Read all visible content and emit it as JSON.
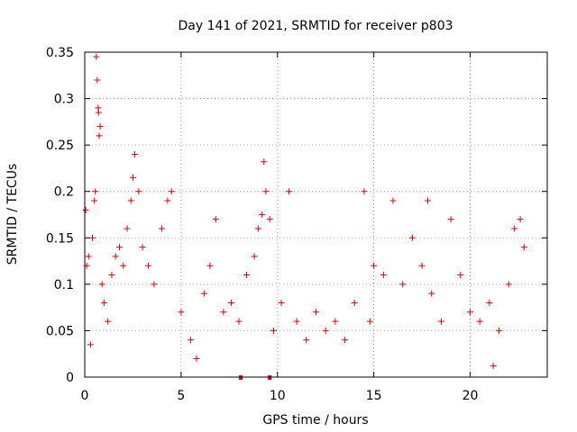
{
  "chart_data": {
    "type": "scatter",
    "title": "Day 141 of 2021, SRMTID for receiver p803",
    "xlabel": "GPS time / hours",
    "ylabel": "SRMTID / TECUs",
    "xlim": [
      0,
      24
    ],
    "ylim": [
      0,
      0.35
    ],
    "grid": true,
    "x_ticks": [
      0,
      5,
      10,
      15,
      20
    ],
    "x_tick_labels": [
      "0",
      "5",
      "10",
      "15",
      "20"
    ],
    "y_ticks": [
      0,
      0.05,
      0.1,
      0.15,
      0.2,
      0.25,
      0.3,
      0.35
    ],
    "y_tick_labels": [
      "0",
      "0.05",
      "0.1",
      "0.15",
      "0.2",
      "0.25",
      "0.3",
      "0.35"
    ],
    "marker": "+",
    "color": "#e00000",
    "gap_markers_x": [
      8.1,
      9.6
    ],
    "series": [
      {
        "name": "SRMTID",
        "points": [
          [
            0.05,
            0.18
          ],
          [
            0.1,
            0.12
          ],
          [
            0.2,
            0.13
          ],
          [
            0.3,
            0.035
          ],
          [
            0.4,
            0.15
          ],
          [
            0.5,
            0.19
          ],
          [
            0.55,
            0.2
          ],
          [
            0.6,
            0.345
          ],
          [
            0.65,
            0.32
          ],
          [
            0.7,
            0.29
          ],
          [
            0.72,
            0.285
          ],
          [
            0.75,
            0.26
          ],
          [
            0.8,
            0.27
          ],
          [
            0.9,
            0.1
          ],
          [
            1.0,
            0.08
          ],
          [
            1.2,
            0.06
          ],
          [
            1.4,
            0.11
          ],
          [
            1.6,
            0.13
          ],
          [
            1.8,
            0.14
          ],
          [
            2.0,
            0.12
          ],
          [
            2.2,
            0.16
          ],
          [
            2.4,
            0.19
          ],
          [
            2.5,
            0.215
          ],
          [
            2.6,
            0.24
          ],
          [
            2.8,
            0.2
          ],
          [
            3.0,
            0.14
          ],
          [
            3.3,
            0.12
          ],
          [
            3.6,
            0.1
          ],
          [
            4.0,
            0.16
          ],
          [
            4.3,
            0.19
          ],
          [
            4.5,
            0.2
          ],
          [
            5.0,
            0.07
          ],
          [
            5.5,
            0.04
          ],
          [
            5.8,
            0.02
          ],
          [
            6.2,
            0.09
          ],
          [
            6.5,
            0.12
          ],
          [
            6.8,
            0.17
          ],
          [
            7.2,
            0.07
          ],
          [
            7.6,
            0.08
          ],
          [
            8.0,
            0.06
          ],
          [
            8.4,
            0.11
          ],
          [
            8.8,
            0.13
          ],
          [
            9.0,
            0.16
          ],
          [
            9.2,
            0.175
          ],
          [
            9.3,
            0.232
          ],
          [
            9.4,
            0.2
          ],
          [
            9.6,
            0.17
          ],
          [
            9.8,
            0.05
          ],
          [
            10.2,
            0.08
          ],
          [
            10.6,
            0.2
          ],
          [
            11.0,
            0.06
          ],
          [
            11.5,
            0.04
          ],
          [
            12.0,
            0.07
          ],
          [
            12.5,
            0.05
          ],
          [
            13.0,
            0.06
          ],
          [
            13.5,
            0.04
          ],
          [
            14.0,
            0.08
          ],
          [
            14.5,
            0.2
          ],
          [
            14.8,
            0.06
          ],
          [
            15.0,
            0.12
          ],
          [
            15.5,
            0.11
          ],
          [
            16.0,
            0.19
          ],
          [
            16.5,
            0.1
          ],
          [
            17.0,
            0.15
          ],
          [
            17.5,
            0.12
          ],
          [
            17.8,
            0.19
          ],
          [
            18.0,
            0.09
          ],
          [
            18.5,
            0.06
          ],
          [
            19.0,
            0.17
          ],
          [
            19.5,
            0.11
          ],
          [
            20.0,
            0.07
          ],
          [
            20.5,
            0.06
          ],
          [
            21.0,
            0.08
          ],
          [
            21.2,
            0.012
          ],
          [
            21.5,
            0.05
          ],
          [
            22.0,
            0.1
          ],
          [
            22.3,
            0.16
          ],
          [
            22.6,
            0.17
          ],
          [
            22.8,
            0.14
          ]
        ]
      }
    ]
  }
}
